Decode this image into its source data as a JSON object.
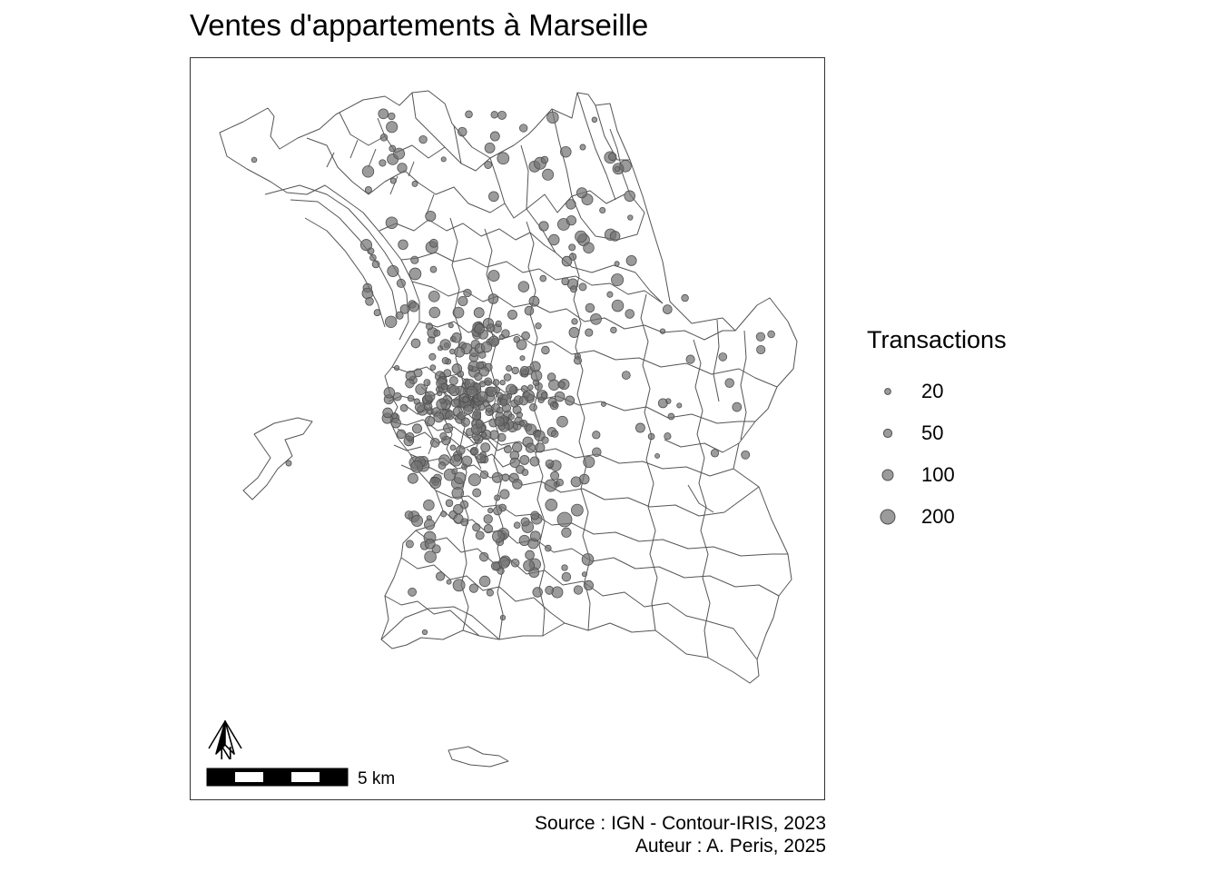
{
  "title": "Ventes d'appartements à Marseille",
  "legend": {
    "title": "Transactions",
    "items": [
      {
        "label": "20",
        "value": 20
      },
      {
        "label": "50",
        "value": 50
      },
      {
        "label": "100",
        "value": 100
      },
      {
        "label": "200",
        "value": 200
      }
    ]
  },
  "scale_bar": {
    "label": "5 km",
    "distance_km": 5
  },
  "north_arrow": {
    "label": "N"
  },
  "caption": {
    "source": "Source : IGN - Contour-IRIS, 2023",
    "author": "Auteur : A. Peris, 2025"
  },
  "colors": {
    "boundary": "#555555",
    "symbol_fill": "#707070",
    "symbol_stroke": "#505050",
    "frame": "#333333",
    "background": "#ffffff"
  },
  "symbols": {
    "shape": "proportional-circle",
    "opacity": 0.7
  }
}
